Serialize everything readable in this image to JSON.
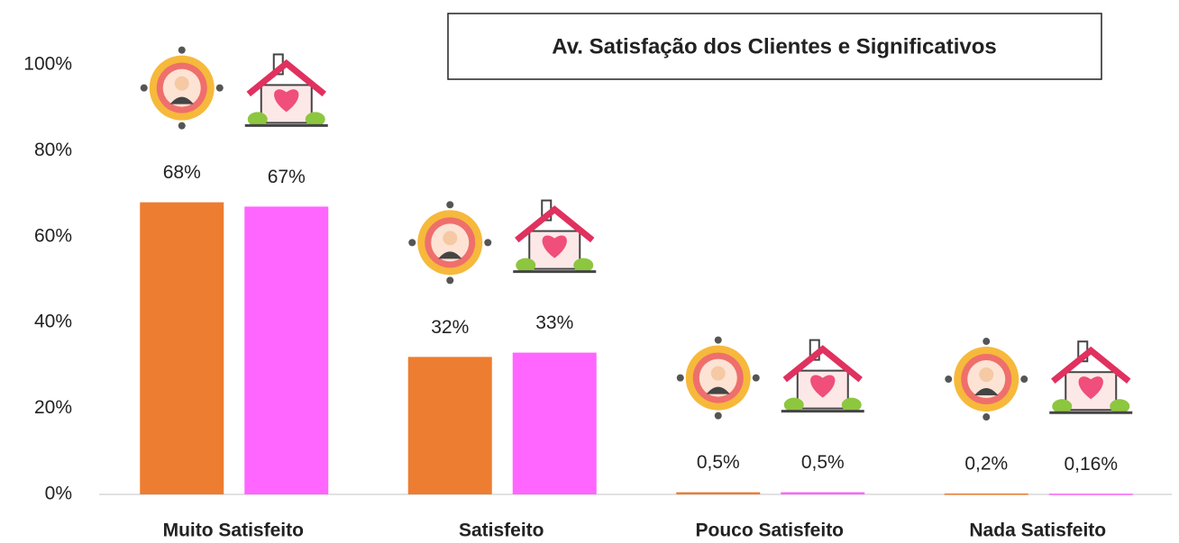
{
  "chart_data": {
    "type": "bar",
    "title": "Av. Satisfação dos Clientes e Significativos",
    "categories": [
      "Muito Satisfeito",
      "Satisfeito",
      "Pouco Satisfeito",
      "Nada Satisfeito"
    ],
    "series": [
      {
        "color": "#ed7d31",
        "values": [
          68,
          32,
          0.5,
          0.2
        ],
        "value_labels": [
          "68%",
          "32%",
          "0,5%",
          "0,2%"
        ]
      },
      {
        "color": "#ff66ff",
        "values": [
          67,
          33,
          0.5,
          0.16
        ],
        "value_labels": [
          "67%",
          "33%",
          "0,5%",
          "0,16%"
        ]
      }
    ],
    "ylim": [
      0,
      100
    ],
    "yticks": [
      {
        "value": 0,
        "label": "0%"
      },
      {
        "value": 20,
        "label": "20%"
      },
      {
        "value": 40,
        "label": "40%"
      },
      {
        "value": 60,
        "label": "60%"
      },
      {
        "value": 80,
        "label": "80%"
      },
      {
        "value": 100,
        "label": "100%"
      }
    ],
    "grid": false
  }
}
